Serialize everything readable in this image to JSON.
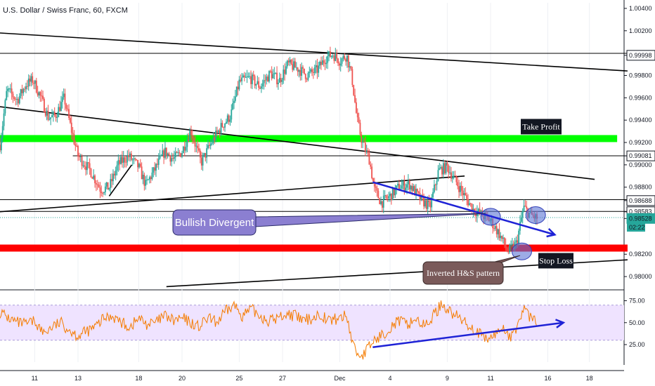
{
  "header": {
    "title": "U.S. Dollar / Swiss Franc, 60, FXCM"
  },
  "colors": {
    "up": "#26a69a",
    "down": "#ef5350",
    "rsi_line": "#f57c00",
    "rsi_band": "#efe3ff",
    "take_profit": "#00ff00",
    "stop_loss": "#ff0000",
    "trend_arrow": "#1e22d6",
    "callout": "#8b7fd1"
  },
  "chart_data": {
    "type": "candlestick",
    "price_axis": {
      "ylim": [
        0.979,
        1.0045
      ],
      "ticks": [
        1.004,
        1.002,
        0.9998,
        0.998,
        0.996,
        0.994,
        0.992,
        0.9908,
        0.99,
        0.988,
        0.9868,
        0.9858,
        0.9852,
        0.982,
        0.98
      ],
      "tick_labels": [
        "1.00400",
        "1.00200",
        "0.99998",
        "0.99800",
        "0.99600",
        "0.99400",
        "0.99200",
        "0.99081",
        "0.99000",
        "0.98800",
        "0.98688",
        "0.98583",
        "0.98528",
        "0.98200",
        "0.98000"
      ],
      "boxed_labels": [
        "0.99998",
        "0.99081",
        "0.98688",
        "0.98583",
        "0.98528"
      ],
      "countdown": "02:22"
    },
    "rsi_axis": {
      "ylim": [
        5,
        85
      ],
      "ticks": [
        25,
        50,
        75
      ],
      "tick_labels": [
        "25.00",
        "50.00",
        "75.00"
      ],
      "band": [
        30,
        70
      ]
    },
    "x_axis": {
      "range": [
        0,
        36
      ],
      "ticks": [
        {
          "x": 2,
          "label": "11"
        },
        {
          "x": 4.5,
          "label": "13"
        },
        {
          "x": 8,
          "label": "18"
        },
        {
          "x": 10.5,
          "label": "20"
        },
        {
          "x": 13.8,
          "label": "25"
        },
        {
          "x": 16.3,
          "label": "27"
        },
        {
          "x": 19.6,
          "label": "Dec"
        },
        {
          "x": 22.5,
          "label": "4"
        },
        {
          "x": 25.8,
          "label": "9"
        },
        {
          "x": 28.3,
          "label": "11"
        },
        {
          "x": 31.6,
          "label": "16"
        },
        {
          "x": 34,
          "label": "18"
        }
      ]
    },
    "price_path": [
      [
        0.0,
        0.9918
      ],
      [
        0.4,
        0.9967
      ],
      [
        1.0,
        0.9958
      ],
      [
        1.5,
        0.9972
      ],
      [
        1.9,
        0.9976
      ],
      [
        2.3,
        0.9962
      ],
      [
        2.8,
        0.9942
      ],
      [
        3.2,
        0.9944
      ],
      [
        3.7,
        0.996
      ],
      [
        4.1,
        0.9932
      ],
      [
        4.5,
        0.9908
      ],
      [
        5.2,
        0.9895
      ],
      [
        5.8,
        0.9878
      ],
      [
        6.3,
        0.988
      ],
      [
        6.8,
        0.99
      ],
      [
        7.4,
        0.9908
      ],
      [
        8.0,
        0.9898
      ],
      [
        8.4,
        0.9882
      ],
      [
        8.9,
        0.9895
      ],
      [
        9.5,
        0.9912
      ],
      [
        10.0,
        0.9905
      ],
      [
        10.5,
        0.9912
      ],
      [
        11.0,
        0.9931
      ],
      [
        11.6,
        0.9902
      ],
      [
        12.2,
        0.992
      ],
      [
        12.8,
        0.9935
      ],
      [
        13.3,
        0.9944
      ],
      [
        13.8,
        0.9974
      ],
      [
        14.4,
        0.9978
      ],
      [
        15.0,
        0.997
      ],
      [
        15.6,
        0.9982
      ],
      [
        16.1,
        0.9975
      ],
      [
        16.6,
        0.999
      ],
      [
        17.2,
        0.9986
      ],
      [
        17.7,
        0.998
      ],
      [
        18.3,
        0.9985
      ],
      [
        18.8,
        0.9996
      ],
      [
        19.2,
        0.9999
      ],
      [
        19.6,
        0.9993
      ],
      [
        20.0,
        0.9998
      ],
      [
        20.3,
        0.9978
      ],
      [
        20.6,
        0.994
      ],
      [
        20.9,
        0.992
      ],
      [
        21.3,
        0.9905
      ],
      [
        21.6,
        0.9878
      ],
      [
        22.0,
        0.9866
      ],
      [
        22.5,
        0.9872
      ],
      [
        23.0,
        0.988
      ],
      [
        23.6,
        0.9883
      ],
      [
        24.2,
        0.987
      ],
      [
        24.8,
        0.9862
      ],
      [
        25.3,
        0.9895
      ],
      [
        25.8,
        0.9898
      ],
      [
        26.3,
        0.9885
      ],
      [
        26.8,
        0.9872
      ],
      [
        27.3,
        0.986
      ],
      [
        27.8,
        0.9855
      ],
      [
        28.3,
        0.985
      ],
      [
        28.8,
        0.9838
      ],
      [
        29.3,
        0.9822
      ],
      [
        29.8,
        0.983
      ],
      [
        30.2,
        0.9862
      ],
      [
        30.6,
        0.9855
      ],
      [
        31.0,
        0.9852
      ]
    ],
    "rsi_path": [
      [
        0.0,
        62
      ],
      [
        0.5,
        55
      ],
      [
        1.0,
        50
      ],
      [
        1.5,
        48
      ],
      [
        2.0,
        52
      ],
      [
        2.5,
        38
      ],
      [
        3.0,
        45
      ],
      [
        3.5,
        50
      ],
      [
        4.0,
        42
      ],
      [
        4.5,
        35
      ],
      [
        5.0,
        40
      ],
      [
        5.5,
        45
      ],
      [
        6.0,
        55
      ],
      [
        6.5,
        58
      ],
      [
        7.0,
        50
      ],
      [
        7.5,
        45
      ],
      [
        8.0,
        55
      ],
      [
        8.5,
        48
      ],
      [
        9.0,
        50
      ],
      [
        9.5,
        58
      ],
      [
        10.0,
        52
      ],
      [
        10.5,
        55
      ],
      [
        11.0,
        50
      ],
      [
        11.5,
        45
      ],
      [
        12.0,
        55
      ],
      [
        12.5,
        50
      ],
      [
        13.0,
        62
      ],
      [
        13.5,
        70
      ],
      [
        14.0,
        58
      ],
      [
        14.5,
        65
      ],
      [
        15.0,
        58
      ],
      [
        15.5,
        52
      ],
      [
        16.0,
        55
      ],
      [
        16.5,
        60
      ],
      [
        17.0,
        58
      ],
      [
        17.5,
        52
      ],
      [
        18.0,
        55
      ],
      [
        18.5,
        60
      ],
      [
        19.0,
        52
      ],
      [
        19.5,
        55
      ],
      [
        20.0,
        58
      ],
      [
        20.3,
        30
      ],
      [
        20.6,
        15
      ],
      [
        20.9,
        12
      ],
      [
        21.2,
        20
      ],
      [
        21.6,
        30
      ],
      [
        22.0,
        35
      ],
      [
        22.5,
        45
      ],
      [
        23.0,
        52
      ],
      [
        23.5,
        48
      ],
      [
        24.0,
        55
      ],
      [
        24.5,
        45
      ],
      [
        25.0,
        58
      ],
      [
        25.5,
        72
      ],
      [
        26.0,
        62
      ],
      [
        26.5,
        55
      ],
      [
        27.0,
        48
      ],
      [
        27.5,
        40
      ],
      [
        28.0,
        30
      ],
      [
        28.5,
        35
      ],
      [
        29.0,
        45
      ],
      [
        29.5,
        32
      ],
      [
        30.0,
        55
      ],
      [
        30.3,
        68
      ],
      [
        30.6,
        55
      ],
      [
        31.0,
        52
      ]
    ],
    "lines": [
      {
        "name": "desc-line-top",
        "from": [
          0,
          1.0018
        ],
        "to": [
          36.2,
          0.9984
        ],
        "color": "#000000"
      },
      {
        "name": "desc-line-mid",
        "from": [
          0,
          0.9952
        ],
        "to": [
          34.3,
          0.9887
        ],
        "color": "#000000"
      },
      {
        "name": "asc-line-low",
        "from": [
          0,
          0.9858
        ],
        "to": [
          26.8,
          0.989
        ],
        "color": "#000000"
      },
      {
        "name": "asc-line-bottom",
        "from": [
          9.6,
          0.9791
        ],
        "to": [
          36.2,
          0.9815
        ],
        "color": "#000000"
      },
      {
        "name": "short-up-line",
        "from": [
          6.3,
          0.9872
        ],
        "to": [
          7.6,
          0.99
        ],
        "color": "#000000"
      }
    ],
    "hlines": [
      {
        "name": "level-99998",
        "y": 0.99998,
        "from": 0,
        "to": 36.2
      },
      {
        "name": "level-99081",
        "y": 0.99081,
        "from": 4.2,
        "to": 36.2
      },
      {
        "name": "level-98688",
        "y": 0.98688,
        "from": 0,
        "to": 36.2
      },
      {
        "name": "level-98583",
        "y": 0.98583,
        "from": 0,
        "to": 36.2
      }
    ],
    "zones": [
      {
        "name": "take-profit-zone",
        "y": 0.99235,
        "x_from": 0,
        "x_to": 35.6,
        "color": "#00ff00"
      },
      {
        "name": "stop-loss-zone",
        "y": 0.98255,
        "x_from": 0,
        "x_to": 36.2,
        "color": "#ff0000"
      }
    ],
    "arrows": [
      {
        "name": "price-trend-arrow",
        "from": [
          21.5,
          0.98845
        ],
        "to": [
          32,
          0.98375
        ]
      },
      {
        "name": "rsi-trend-arrow",
        "from": [
          21.5,
          22
        ],
        "to": [
          32.5,
          50
        ],
        "pane": "rsi"
      }
    ],
    "ellipses": [
      {
        "name": "shoulder-left-ellipse",
        "cx": 28.3,
        "cy": 0.98535
      },
      {
        "name": "head-ellipse",
        "cx": 30.1,
        "cy": 0.98225
      },
      {
        "name": "shoulder-right-ellipse",
        "cx": 30.9,
        "cy": 0.9855
      }
    ],
    "annotations": {
      "take_profit": "Take Profit",
      "stop_loss": "Stop Loss",
      "bullish_divergent": "Bullish Divergent",
      "inverted_hs": "Inverted H&S pattern"
    }
  }
}
